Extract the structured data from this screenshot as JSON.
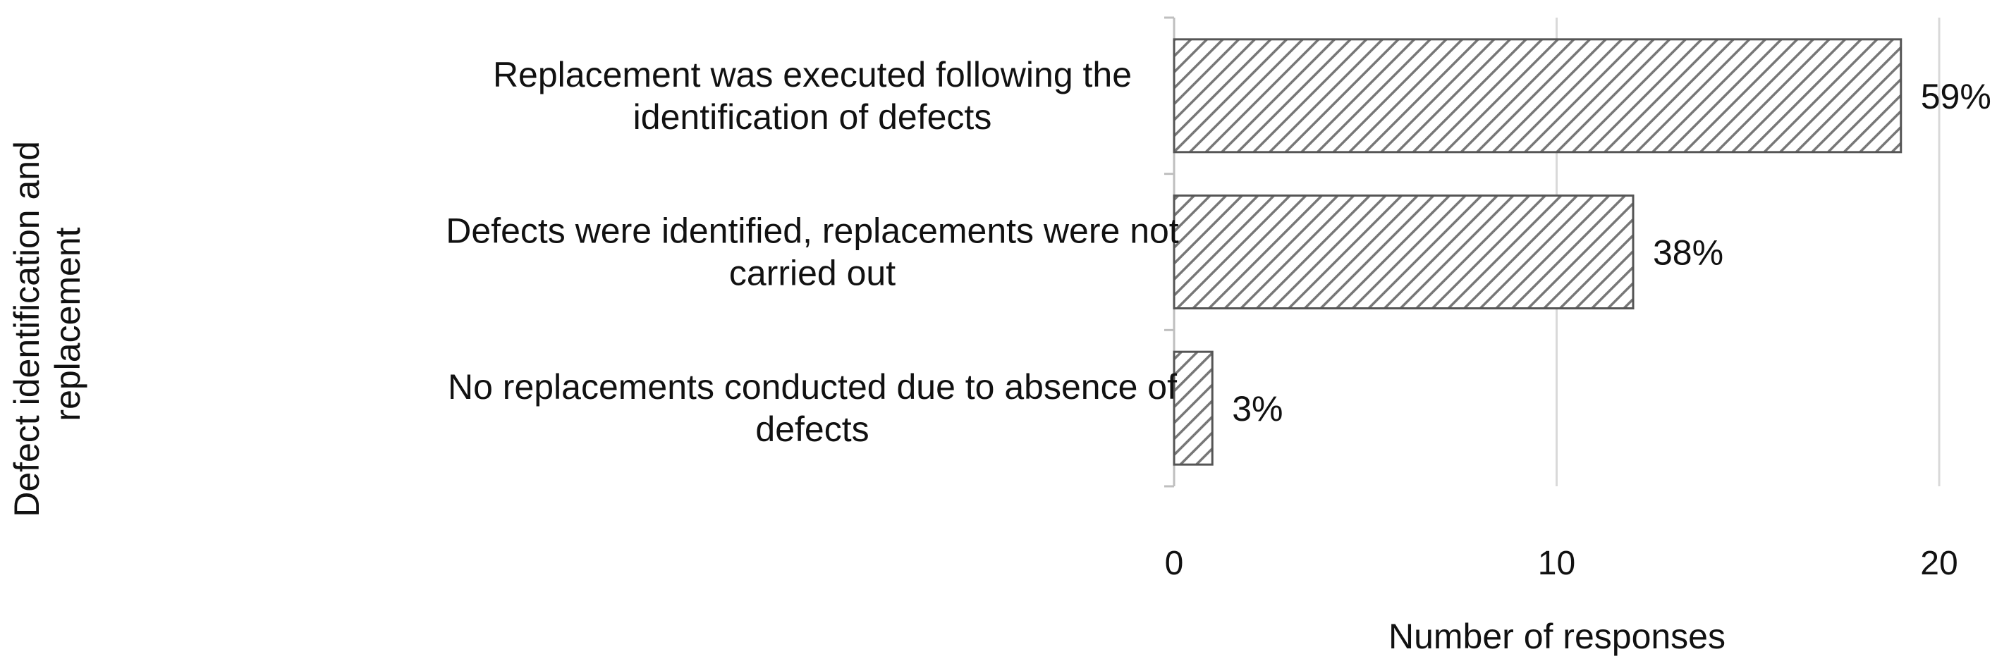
{
  "chart_data": {
    "type": "bar",
    "orientation": "horizontal",
    "title": "",
    "categories": [
      [
        "Replacement was executed following the",
        "identification of defects"
      ],
      [
        "Defects were identified, replacements were not",
        "carried out"
      ],
      [
        "No replacements conducted due to absence of",
        "defects"
      ]
    ],
    "values": [
      19,
      12,
      1
    ],
    "data_labels": [
      "59%",
      "38%",
      "3%"
    ],
    "xlabel": "Number of responses",
    "ylabel": [
      "Defect identification and",
      "replacement"
    ],
    "xlim": [
      0,
      20
    ],
    "xticks": [
      "0",
      "10",
      "20"
    ],
    "grid": "vertical",
    "legend": "none",
    "bar_fill": "diagonal hatch",
    "colors": {
      "bar_stroke": "#555555",
      "hatch": "#777777",
      "grid": "#d9d9d9",
      "axis": "#bfbfbf",
      "text": "#111111"
    }
  }
}
